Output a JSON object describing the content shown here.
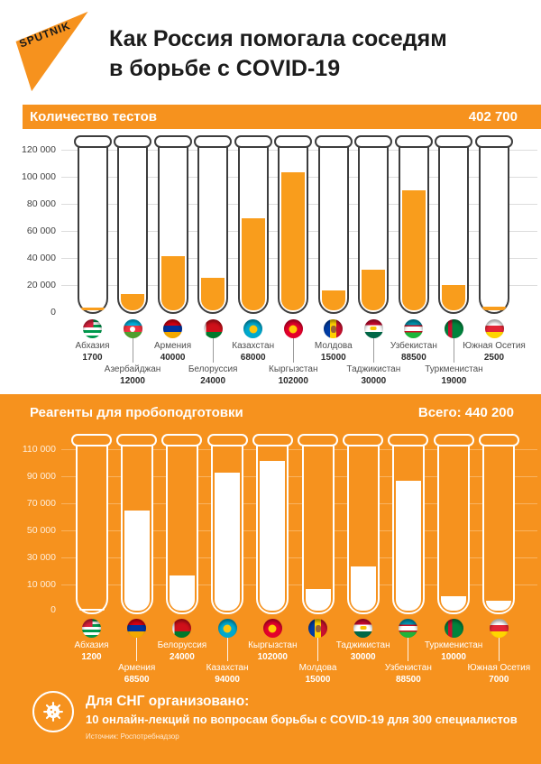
{
  "brand": {
    "name": "SPUTNIK"
  },
  "header": {
    "title_line1": "Как Россия помогала соседям",
    "title_line2": "в борьбе с COVID-19"
  },
  "colors": {
    "orange": "#F6921E",
    "tube_fill_orange": "#F99D1C",
    "tube_outline_dark": "#3D3D3D",
    "white": "#FFFFFF"
  },
  "charts": {
    "tests": {
      "title": "Количество тестов",
      "total": "402 700",
      "yticks": [
        "120 000",
        "100 000",
        "80 000",
        "60 000",
        "40 000",
        "20 000",
        "0"
      ],
      "countries": [
        {
          "name": "Абхазия",
          "value": 1700,
          "label": "1700",
          "flag": "abkhazia"
        },
        {
          "name": "Азербайджан",
          "value": 12000,
          "label": "12000",
          "flag": "azerbaijan"
        },
        {
          "name": "Армения",
          "value": 40000,
          "label": "40000",
          "flag": "armenia"
        },
        {
          "name": "Белоруссия",
          "value": 24000,
          "label": "24000",
          "flag": "belarus"
        },
        {
          "name": "Казахстан",
          "value": 68000,
          "label": "68000",
          "flag": "kazakhstan"
        },
        {
          "name": "Кыргызстан",
          "value": 102000,
          "label": "102000",
          "flag": "kyrgyzstan"
        },
        {
          "name": "Молдова",
          "value": 15000,
          "label": "15000",
          "flag": "moldova"
        },
        {
          "name": "Таджикистан",
          "value": 30000,
          "label": "30000",
          "flag": "tajikistan"
        },
        {
          "name": "Узбекистан",
          "value": 88500,
          "label": "88500",
          "flag": "uzbekistan"
        },
        {
          "name": "Туркменистан",
          "value": 19000,
          "label": "19000",
          "flag": "turkmenistan"
        },
        {
          "name": "Южная Осетия",
          "value": 2500,
          "label": "2500",
          "flag": "south-ossetia"
        }
      ]
    },
    "reagents": {
      "title": "Реагенты для пробоподготовки",
      "total": "Всего: 440 200",
      "yticks": [
        "110 000",
        "90 000",
        "70 000",
        "50 000",
        "30 000",
        "10 000",
        "0"
      ],
      "countries": [
        {
          "name": "Абхазия",
          "value": 1200,
          "label": "1200",
          "flag": "abkhazia"
        },
        {
          "name": "Армения",
          "value": 68500,
          "label": "68500",
          "flag": "armenia"
        },
        {
          "name": "Белоруссия",
          "value": 24000,
          "label": "24000",
          "flag": "belarus"
        },
        {
          "name": "Казахстан",
          "value": 94000,
          "label": "94000",
          "flag": "kazakhstan"
        },
        {
          "name": "Кыргызстан",
          "value": 102000,
          "label": "102000",
          "flag": "kyrgyzstan"
        },
        {
          "name": "Молдова",
          "value": 15000,
          "label": "15000",
          "flag": "moldova"
        },
        {
          "name": "Таджикистан",
          "value": 30000,
          "label": "30000",
          "flag": "tajikistan"
        },
        {
          "name": "Узбекистан",
          "value": 88500,
          "label": "88500",
          "flag": "uzbekistan"
        },
        {
          "name": "Туркменистан",
          "value": 10000,
          "label": "10000",
          "flag": "turkmenistan"
        },
        {
          "name": "Южная Осетия",
          "value": 7000,
          "label": "7000",
          "flag": "south-ossetia"
        }
      ]
    }
  },
  "footer": {
    "heading": "Для СНГ организовано:",
    "text": "10 онлайн-лекций по вопросам борьбы с COVID-19 для 300 специалистов",
    "source": "Источник: Роспотребнадзор"
  },
  "chart_data": [
    {
      "type": "bar",
      "title": "Количество тестов",
      "total": 402700,
      "total_label": "402 700",
      "categories": [
        "Абхазия",
        "Азербайджан",
        "Армения",
        "Белоруссия",
        "Казахстан",
        "Кыргызстан",
        "Молдова",
        "Таджикистан",
        "Узбекистан",
        "Туркменистан",
        "Южная Осетия"
      ],
      "values": [
        1700,
        12000,
        40000,
        24000,
        68000,
        102000,
        15000,
        30000,
        88500,
        19000,
        2500
      ],
      "ylim": [
        0,
        120000
      ],
      "yticks": [
        0,
        20000,
        40000,
        60000,
        80000,
        100000,
        120000
      ],
      "grid": true,
      "style": "test-tube shaped bars, orange fill on white background"
    },
    {
      "type": "bar",
      "title": "Реагенты для пробоподготовки",
      "total": 440200,
      "total_label": "Всего: 440 200",
      "categories": [
        "Абхазия",
        "Армения",
        "Белоруссия",
        "Казахстан",
        "Кыргызстан",
        "Молдова",
        "Таджикистан",
        "Узбекистан",
        "Туркменистан",
        "Южная Осетия"
      ],
      "values": [
        1200,
        68500,
        24000,
        94000,
        102000,
        15000,
        30000,
        88500,
        10000,
        7000
      ],
      "ylim": [
        0,
        110000
      ],
      "yticks": [
        0,
        10000,
        30000,
        50000,
        70000,
        90000,
        110000
      ],
      "grid": true,
      "style": "test-tube shaped bars, white fill on orange background"
    }
  ]
}
